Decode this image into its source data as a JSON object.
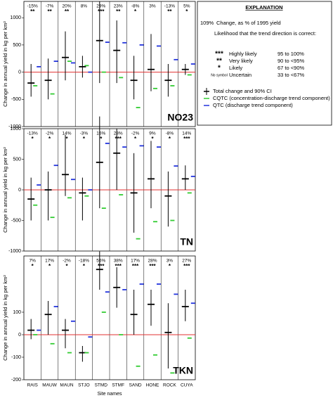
{
  "chart_data": [
    {
      "type": "errorbar",
      "title": "NO23",
      "categories": [
        "RAIS",
        "MAUW",
        "MAUN",
        "STJO",
        "STMD",
        "STMF",
        "SAND",
        "HONE",
        "ROCK",
        "CUYA"
      ],
      "change_labels": [
        "-15%",
        "-7%",
        "20%",
        "8%",
        "29%",
        "23%",
        "-8%",
        "3%",
        "-13%",
        "5%"
      ],
      "significance": [
        "**",
        "**",
        "**",
        "",
        "***",
        "**",
        "*",
        "",
        "**",
        "*"
      ],
      "series": [
        {
          "name": "Total change and 90% CI",
          "color": "#000000",
          "values": [
            -200,
            -150,
            270,
            100,
            580,
            400,
            -150,
            50,
            -150,
            50
          ],
          "ci_low": [
            -450,
            -500,
            -150,
            -100,
            -200,
            -200,
            -500,
            -350,
            -450,
            -50
          ],
          "ci_high": [
            150,
            250,
            750,
            300,
            1300,
            950,
            300,
            700,
            150,
            150
          ]
        },
        {
          "name": "CQTC (concentration-discharge trend component)",
          "color": "#33cc33",
          "values": [
            -250,
            -400,
            200,
            120,
            0,
            -100,
            -650,
            -300,
            -250,
            -50
          ]
        },
        {
          "name": "QTC  (discharge trend component)",
          "color": "#2233dd",
          "values": [
            100,
            200,
            170,
            0,
            550,
            540,
            500,
            480,
            230,
            150
          ]
        }
      ],
      "ylabel": "Change in annual yield in kg per km²",
      "ylim": [
        -1000,
        1300
      ],
      "yticks": [
        -1000,
        -500,
        0,
        500,
        1000
      ]
    },
    {
      "type": "errorbar",
      "title": "TN",
      "categories": [
        "RAIS",
        "MAUW",
        "MAUN",
        "STJO",
        "STMD",
        "STMF",
        "SAND",
        "HONE",
        "ROCK",
        "CUYA"
      ],
      "change_labels": [
        "-13%",
        "-2%",
        "14%",
        "-3%",
        "16%",
        "28%",
        "-2%",
        "9%",
        "-8%",
        "14%"
      ],
      "significance": [
        "*",
        "*",
        "*",
        "*",
        "*",
        "***",
        "*",
        "*",
        "*",
        "***"
      ],
      "series": [
        {
          "color": "#000000",
          "values": [
            -150,
            0,
            250,
            -50,
            450,
            600,
            -50,
            180,
            -100,
            180
          ],
          "ci_low": [
            -500,
            -500,
            -100,
            -500,
            -300,
            0,
            -700,
            -300,
            -600,
            0
          ],
          "ci_high": [
            200,
            300,
            900,
            200,
            1200,
            1000,
            600,
            800,
            300,
            400
          ]
        },
        {
          "color": "#33cc33",
          "values": [
            -250,
            -450,
            -130,
            -100,
            -300,
            -80,
            -800,
            -520,
            -500,
            -50
          ]
        },
        {
          "color": "#2233dd",
          "values": [
            80,
            400,
            170,
            0,
            760,
            700,
            720,
            700,
            390,
            220
          ]
        }
      ],
      "ylabel": "Change in annual yield in kg per km²",
      "ylim": [
        -1000,
        1000
      ],
      "yticks": [
        -1000,
        -500,
        0,
        500,
        1000
      ]
    },
    {
      "type": "errorbar",
      "title": "TKN",
      "categories": [
        "RAIS",
        "MAUW",
        "MAUN",
        "STJO",
        "STMD",
        "STMF",
        "SAND",
        "HONE",
        "ROCK",
        "CUYA"
      ],
      "change_labels": [
        "7%",
        "17%",
        "-2%",
        "-18%",
        "56%",
        "38%",
        "17%",
        "28%",
        "3%",
        "27%"
      ],
      "significance": [
        "*",
        "*",
        "*",
        "*",
        "***",
        "***",
        "***",
        "***",
        "*",
        "***"
      ],
      "series": [
        {
          "color": "#000000",
          "values": [
            20,
            90,
            20,
            -80,
            290,
            210,
            90,
            135,
            10,
            125
          ],
          "ci_low": [
            -20,
            0,
            -60,
            -120,
            200,
            120,
            0,
            40,
            -150,
            60
          ],
          "ci_high": [
            70,
            150,
            70,
            -50,
            370,
            300,
            200,
            200,
            140,
            200
          ]
        },
        {
          "color": "#33cc33",
          "values": [
            0,
            -40,
            -80,
            -80,
            100,
            0,
            -140,
            -90,
            -170,
            -15
          ]
        },
        {
          "color": "#2233dd",
          "values": [
            20,
            125,
            60,
            -10,
            190,
            200,
            225,
            225,
            180,
            140
          ]
        }
      ],
      "ylabel": "Change in annual yield in kg per km²",
      "xlabel": "Site names",
      "ylim": [
        -200,
        350
      ],
      "yticks": [
        -200,
        -100,
        0,
        100
      ]
    }
  ],
  "explanation": {
    "title": "EXPLANATION",
    "pct_example": "109%",
    "pct_text": "Change, as % of 1995 yield",
    "likelihood_title": "Likelihood that the trend direction is correct:",
    "rows": [
      [
        "***",
        "Highly likely",
        "95 to 100%"
      ],
      [
        "**",
        "Very likely",
        "90 to <95%"
      ],
      [
        "*",
        "Likely",
        "67 to <90%"
      ],
      [
        "No symbol",
        "Uncertain",
        "33 to <67%"
      ]
    ]
  }
}
